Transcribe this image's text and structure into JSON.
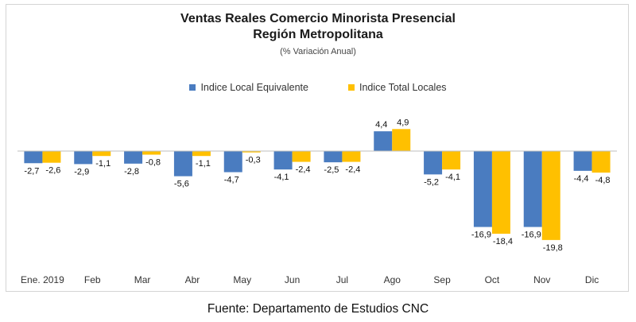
{
  "page": {
    "title_line1": "Ventas Reales Comercio Minorista Presencial",
    "title_line2": "Región Metropolitana",
    "subtitle": "(% Variación Anual)",
    "source": "Fuente: Departamento de Estudios CNC"
  },
  "colors": {
    "series1": "#4a7cc0",
    "series2": "#ffc000",
    "axis": "#bfbfbf"
  },
  "chart_data": {
    "type": "bar",
    "title": "Ventas Reales Comercio Minorista Presencial Región Metropolitana",
    "subtitle": "(% Variación Anual)",
    "categories": [
      "Ene. 2019",
      "Feb",
      "Mar",
      "Abr",
      "May",
      "Jun",
      "Jul",
      "Ago",
      "Sep",
      "Oct",
      "Nov",
      "Dic"
    ],
    "series": [
      {
        "name": "Indice Local Equivalente",
        "values": [
          -2.7,
          -2.9,
          -2.8,
          -5.6,
          -4.7,
          -4.1,
          -2.5,
          4.4,
          -5.2,
          -16.9,
          -16.9,
          -4.4
        ],
        "labels": [
          "-2,7",
          "-2,9",
          "-2,8",
          "-5,6",
          "-4,7",
          "-4,1",
          "-2,5",
          "4,4",
          "-5,2",
          "-16,9",
          "-16,9",
          "-4,4"
        ]
      },
      {
        "name": "Indice Total Locales",
        "values": [
          -2.6,
          -1.1,
          -0.8,
          -1.1,
          -0.3,
          -2.4,
          -2.4,
          4.9,
          -4.1,
          -18.4,
          -19.8,
          -4.8
        ],
        "labels": [
          "-2,6",
          "-1,1",
          "-0,8",
          "-1,1",
          "-0,3",
          "-2,4",
          "-2,4",
          "4,9",
          "-4,1",
          "-18,4",
          "-19,8",
          "-4,8"
        ]
      }
    ],
    "legend_position": "top-center",
    "grid": false
  }
}
